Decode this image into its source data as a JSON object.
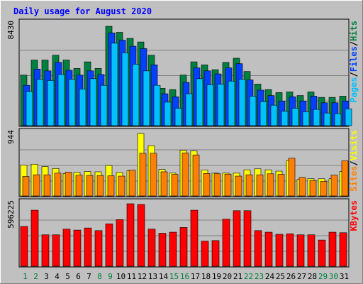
{
  "chart_data": {
    "type": "bar",
    "title": "Daily usage for August 2020",
    "categories": [
      "1",
      "2",
      "3",
      "4",
      "5",
      "6",
      "7",
      "8",
      "9",
      "10",
      "11",
      "12",
      "13",
      "14",
      "15",
      "16",
      "17",
      "18",
      "19",
      "20",
      "21",
      "22",
      "23",
      "24",
      "25",
      "26",
      "27",
      "28",
      "29",
      "30",
      "31"
    ],
    "weekend_days": [
      "1",
      "2",
      "8",
      "9",
      "15",
      "16",
      "22",
      "23",
      "29",
      "30"
    ],
    "panels": [
      {
        "name": "pages-files-hits",
        "max_label": "8430",
        "ylim": [
          0,
          8430
        ],
        "legend": [
          {
            "text": "Hits",
            "color": "#008040"
          },
          {
            "text": "/",
            "color": "#000000"
          },
          {
            "text": "Files",
            "color": "#0040ff"
          },
          {
            "text": "/",
            "color": "#000000"
          },
          {
            "text": "Pages",
            "color": "#00c0ff"
          }
        ],
        "series": [
          {
            "name": "Hits",
            "color": "#008040",
            "values": [
              4200,
              5450,
              5450,
              5850,
              5450,
              4750,
              5300,
              4750,
              8250,
              7750,
              7250,
              6950,
              5850,
              3100,
              3000,
              4200,
              5300,
              5050,
              4650,
              5250,
              5600,
              4500,
              3450,
              3000,
              2750,
              2800,
              2500,
              2800,
              2350,
              2350,
              2450
            ]
          },
          {
            "name": "Files",
            "color": "#0040ff",
            "values": [
              3350,
              4700,
              4550,
              5250,
              4600,
              4200,
              4550,
              4250,
              7700,
              7100,
              6600,
              6400,
              5050,
              2650,
              2400,
              3600,
              4800,
              4550,
              4300,
              4800,
              5150,
              3800,
              2950,
              2500,
              2050,
              2400,
              2050,
              2450,
              1900,
              1900,
              2050
            ]
          },
          {
            "name": "Pages",
            "color": "#00c0ff",
            "values": [
              2850,
              3850,
              3750,
              4250,
              3850,
              3050,
              3900,
              3350,
              6850,
              6050,
              5100,
              4550,
              3350,
              1950,
              1450,
              2650,
              3900,
              3400,
              3450,
              3700,
              3850,
              2450,
              2000,
              1700,
              1200,
              1450,
              1150,
              1350,
              1050,
              1000,
              1400
            ]
          }
        ]
      },
      {
        "name": "sites-visits",
        "max_label": "944",
        "ylim": [
          0,
          944
        ],
        "legend": [
          {
            "text": "Visits",
            "color": "#ffff00"
          },
          {
            "text": "/",
            "color": "#000000"
          },
          {
            "text": "Sites",
            "color": "#ff8000"
          }
        ],
        "series": [
          {
            "name": "Visits",
            "color": "#ffff00",
            "values": [
              465,
              480,
              445,
              415,
              340,
              355,
              370,
              365,
              460,
              355,
              380,
              944,
              760,
              400,
              345,
              690,
              680,
              390,
              345,
              345,
              345,
              395,
              410,
              395,
              375,
              535,
              250,
              260,
              260,
              260,
              370
            ]
          },
          {
            "name": "Sites",
            "color": "#ff8000",
            "values": [
              295,
              320,
              320,
              345,
              360,
              315,
              310,
              310,
              305,
              300,
              390,
              645,
              645,
              365,
              325,
              650,
              620,
              340,
              335,
              330,
              300,
              320,
              320,
              335,
              325,
              570,
              280,
              235,
              220,
              315,
              530
            ]
          }
        ]
      },
      {
        "name": "kbytes",
        "max_label": "596225",
        "ylim": [
          0,
          596225
        ],
        "legend": [
          {
            "text": "KBytes",
            "color": "#ff0000"
          }
        ],
        "series": [
          {
            "name": "KBytes",
            "color": "#ff0000",
            "values": [
              380000,
              535000,
              300000,
              300000,
              355000,
              345000,
              365000,
              340000,
              405000,
              445000,
              596225,
              590000,
              355000,
              315000,
              325000,
              370000,
              535000,
              240000,
              245000,
              450000,
              530000,
              530000,
              340000,
              325000,
              305000,
              310000,
              300000,
              300000,
              250000,
              325000,
              320000
            ]
          }
        ]
      }
    ]
  }
}
